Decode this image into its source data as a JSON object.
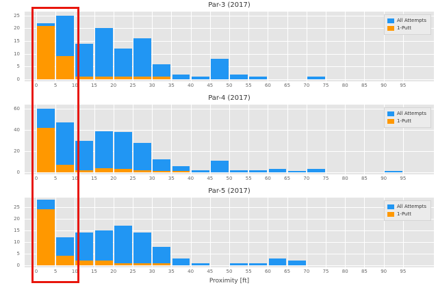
{
  "figure": {
    "xlabel": "Proximity [ft]"
  },
  "colors": {
    "all_attempts": "#2196f3",
    "one_putt": "#ff9800",
    "axes_background": "#e5e5e5",
    "grid": "#ffffff",
    "highlight": "#e8160c"
  },
  "highlight": {
    "type": "rectangle",
    "color": "#e8160c",
    "x_min_ft": -1,
    "x_max_ft": 11
  },
  "chart_data": [
    {
      "type": "bar",
      "title": "Par-3 (2017)",
      "xlabel": "Proximity [ft]",
      "bin_width_ft": 5,
      "categories": [
        0,
        5,
        10,
        15,
        20,
        25,
        30,
        35,
        40,
        45,
        50,
        55,
        60,
        65,
        70,
        75,
        80,
        85,
        90,
        95
      ],
      "xticks": [
        0,
        5,
        10,
        15,
        20,
        25,
        30,
        35,
        40,
        45,
        50,
        55,
        60,
        65,
        70,
        75,
        80,
        85,
        90,
        95
      ],
      "yticks": [
        0,
        5,
        10,
        15,
        20,
        25
      ],
      "ylim": [
        0,
        26.5
      ],
      "legend_position": "upper right",
      "series": [
        {
          "name": "All Attempts",
          "color": "#2196f3",
          "values": [
            22,
            25,
            14,
            20,
            12,
            16,
            6,
            2,
            1,
            8,
            2,
            1,
            0,
            0,
            1,
            0,
            0,
            0,
            0,
            0
          ]
        },
        {
          "name": "1-Putt",
          "color": "#ff9800",
          "values": [
            21,
            9,
            1,
            1,
            1,
            1,
            1,
            0,
            0,
            0,
            0,
            0,
            0,
            0,
            0,
            0,
            0,
            0,
            0,
            0
          ]
        }
      ]
    },
    {
      "type": "bar",
      "title": "Par-4 (2017)",
      "xlabel": "Proximity [ft]",
      "bin_width_ft": 5,
      "categories": [
        0,
        5,
        10,
        15,
        20,
        25,
        30,
        35,
        40,
        45,
        50,
        55,
        60,
        65,
        70,
        75,
        80,
        85,
        90,
        95
      ],
      "xticks": [
        0,
        5,
        10,
        15,
        20,
        25,
        30,
        35,
        40,
        45,
        50,
        55,
        60,
        65,
        70,
        75,
        80,
        85,
        90,
        95
      ],
      "yticks": [
        0,
        20,
        40,
        60
      ],
      "ylim": [
        0,
        64
      ],
      "legend_position": "upper right",
      "series": [
        {
          "name": "All Attempts",
          "color": "#2196f3",
          "values": [
            60,
            47,
            30,
            39,
            38,
            28,
            12,
            6,
            2,
            11,
            2,
            2,
            3,
            1,
            3,
            0,
            0,
            0,
            1,
            0
          ]
        },
        {
          "name": "1-Putt",
          "color": "#ff9800",
          "values": [
            42,
            7,
            2,
            4,
            3,
            2,
            1,
            1,
            0,
            0,
            0,
            0,
            0,
            0,
            0,
            0,
            0,
            0,
            0,
            0
          ]
        }
      ]
    },
    {
      "type": "bar",
      "title": "Par-5 (2017)",
      "xlabel": "Proximity [ft]",
      "bin_width_ft": 5,
      "categories": [
        0,
        5,
        10,
        15,
        20,
        25,
        30,
        35,
        40,
        45,
        50,
        55,
        60,
        65,
        70,
        75,
        80,
        85,
        90,
        95
      ],
      "xticks": [
        0,
        5,
        10,
        15,
        20,
        25,
        30,
        35,
        40,
        45,
        50,
        55,
        60,
        65,
        70,
        75,
        80,
        85,
        90,
        95
      ],
      "yticks": [
        0,
        5,
        10,
        15,
        20,
        25
      ],
      "ylim": [
        0,
        29
      ],
      "legend_position": "upper right",
      "series": [
        {
          "name": "All Attempts",
          "color": "#2196f3",
          "values": [
            28,
            12,
            14,
            15,
            17,
            14,
            8,
            3,
            1,
            0,
            1,
            1,
            3,
            2,
            0,
            0,
            0,
            0,
            0,
            0
          ]
        },
        {
          "name": "1-Putt",
          "color": "#ff9800",
          "values": [
            24,
            4,
            2,
            2,
            1,
            1,
            1,
            0,
            0,
            0,
            0,
            0,
            0,
            0,
            0,
            0,
            0,
            0,
            0,
            0
          ]
        }
      ]
    }
  ]
}
